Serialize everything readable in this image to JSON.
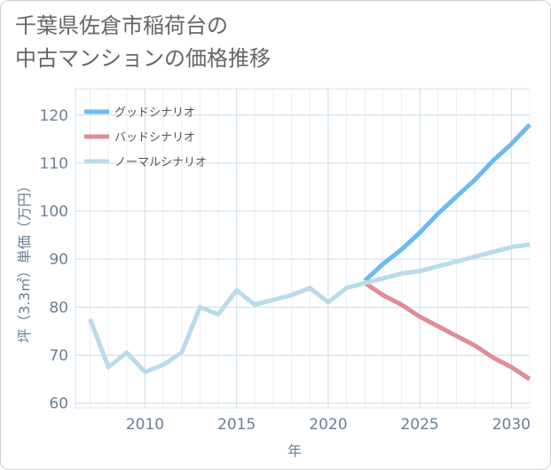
{
  "title_lines": [
    "千葉県佐倉市稲荷台の",
    "中古マンションの価格推移"
  ],
  "chart_data": {
    "type": "line",
    "xlabel": "年",
    "ylabel": "坪（3.3㎡）単価（万円）",
    "xlim": [
      2006.2,
      2031
    ],
    "ylim": [
      59,
      125.5
    ],
    "xticks": [
      2010,
      2015,
      2020,
      2025,
      2030
    ],
    "yticks": [
      60,
      70,
      80,
      90,
      100,
      110,
      120
    ],
    "grid": true,
    "legend_position": "top-left",
    "series": [
      {
        "name": "グッドシナリオ",
        "color": "#6cbaf0",
        "x": [
          2022,
          2023,
          2024,
          2025,
          2026,
          2027,
          2028,
          2029,
          2030,
          2031
        ],
        "y": [
          85.5,
          89.0,
          92.0,
          95.5,
          99.5,
          103.0,
          106.5,
          110.5,
          114.0,
          118.0
        ]
      },
      {
        "name": "バッドシナリオ",
        "color": "#e08c98",
        "x": [
          2022,
          2023,
          2024,
          2025,
          2026,
          2027,
          2028,
          2029,
          2030,
          2031
        ],
        "y": [
          85.0,
          82.5,
          80.5,
          78.0,
          76.0,
          74.0,
          72.0,
          69.5,
          67.5,
          65.0
        ]
      },
      {
        "name": "ノーマルシナリオ",
        "color": "#b9dbeb",
        "x": [
          2007,
          2008,
          2009,
          2010,
          2011,
          2012,
          2013,
          2014,
          2015,
          2016,
          2017,
          2018,
          2019,
          2020,
          2021,
          2022,
          2023,
          2024,
          2025,
          2026,
          2027,
          2028,
          2029,
          2030,
          2031
        ],
        "y": [
          77.5,
          67.5,
          70.5,
          66.5,
          68.0,
          70.5,
          80.0,
          78.5,
          83.5,
          80.5,
          81.5,
          82.5,
          84.0,
          81.0,
          84.0,
          85.0,
          86.0,
          87.0,
          87.5,
          88.5,
          89.5,
          90.5,
          91.5,
          92.5,
          93.0
        ]
      }
    ]
  }
}
